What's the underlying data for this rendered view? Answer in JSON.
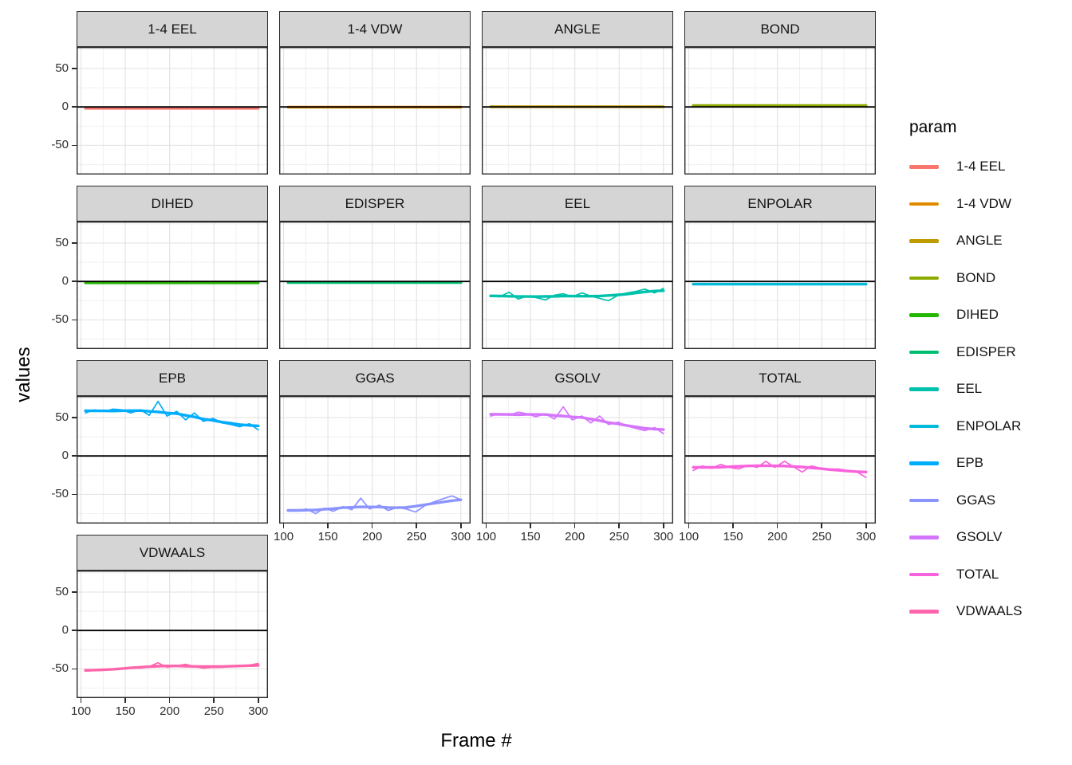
{
  "figure": {
    "y_axis_title": "values",
    "x_axis_title": "Frame #",
    "background_color": "#FFFFFF",
    "strip_fill": "#D5D5D5",
    "panel_border_color": "#2B2B2B",
    "grid_major_color": "#E2E2E2",
    "grid_minor_color": "#EFEFEF",
    "zero_line_color": "#000000"
  },
  "legend": {
    "title": "param",
    "position": "right"
  },
  "chart_data": {
    "type": "line",
    "title": "",
    "xlabel": "Frame #",
    "ylabel": "values",
    "facet_layout": "4 columns, row-major, 13 facets",
    "xlim": [
      95,
      311
    ],
    "ylim": [
      -88,
      78
    ],
    "x_ticks": [
      100,
      150,
      200,
      250,
      300
    ],
    "y_ticks": [
      50,
      0,
      -50
    ],
    "x_minor_ticks": [
      125,
      175,
      225,
      275
    ],
    "y_minor_ticks": [
      -75,
      -25,
      25,
      75
    ],
    "grid": true,
    "legend_position": "right",
    "layers": {
      "raw_line": true,
      "smooth_trend": true,
      "zero_hline": true
    },
    "x": [
      105,
      115,
      126,
      136,
      146,
      156,
      167,
      177,
      187,
      197,
      208,
      218,
      228,
      238,
      249,
      259,
      269,
      279,
      290,
      300
    ],
    "facets": [
      {
        "label": "1-4 EEL",
        "color": "#F8766D",
        "y": [
          -1.8,
          -1.8,
          -1.8,
          -1.8,
          -1.8,
          -1.8,
          -1.8,
          -1.8,
          -1.8,
          -1.8,
          -1.8,
          -1.8,
          -1.8,
          -1.8,
          -1.8,
          -1.8,
          -1.8,
          -1.8,
          -1.8,
          -1.8
        ]
      },
      {
        "label": "1-4 VDW",
        "color": "#E18A00",
        "y": [
          -0.3,
          -0.3,
          -0.3,
          -0.3,
          -0.3,
          -0.3,
          -0.3,
          -0.3,
          -0.3,
          -0.3,
          -0.3,
          -0.3,
          -0.3,
          -0.3,
          -0.3,
          -0.3,
          -0.3,
          -0.3,
          -0.3,
          -0.3
        ]
      },
      {
        "label": "ANGLE",
        "color": "#BE9C00",
        "y": [
          0.3,
          0.3,
          0.3,
          0.3,
          0.3,
          0.3,
          0.3,
          0.3,
          0.3,
          0.3,
          0.3,
          0.3,
          0.3,
          0.3,
          0.3,
          0.3,
          0.3,
          0.3,
          0.3,
          0.3
        ]
      },
      {
        "label": "BOND",
        "color": "#8CAB00",
        "y": [
          1.8,
          1.8,
          1.8,
          1.8,
          1.8,
          1.8,
          1.8,
          1.8,
          1.8,
          1.8,
          1.8,
          1.8,
          1.8,
          1.8,
          1.8,
          1.8,
          1.8,
          1.8,
          1.8,
          1.8
        ]
      },
      {
        "label": "DIHED",
        "color": "#24B700",
        "y": [
          -1.8,
          -1.8,
          -1.8,
          -1.8,
          -1.8,
          -1.8,
          -1.8,
          -1.8,
          -1.8,
          -1.8,
          -1.8,
          -1.8,
          -1.8,
          -1.8,
          -1.8,
          -1.8,
          -1.8,
          -1.8,
          -1.8,
          -1.8
        ]
      },
      {
        "label": "EDISPER",
        "color": "#00BE70",
        "y": [
          -1.5,
          -1.5,
          -1.5,
          -1.5,
          -1.5,
          -1.5,
          -1.5,
          -1.5,
          -1.5,
          -1.5,
          -1.5,
          -1.5,
          -1.5,
          -1.5,
          -1.5,
          -1.5,
          -1.5,
          -1.5,
          -1.5,
          -1.5
        ]
      },
      {
        "label": "EEL",
        "color": "#00C1AB",
        "y": [
          -18,
          -20,
          -14,
          -23,
          -19,
          -21,
          -24,
          -18,
          -16,
          -20,
          -15,
          -19,
          -22,
          -25,
          -18,
          -15,
          -13,
          -10,
          -15,
          -9
        ]
      },
      {
        "label": "ENPOLAR",
        "color": "#00BBDA",
        "y": [
          -3.5,
          -3.5,
          -3.5,
          -3.5,
          -3.5,
          -3.5,
          -3.5,
          -3.5,
          -3.5,
          -3.5,
          -3.5,
          -3.5,
          -3.5,
          -3.5,
          -3.5,
          -3.5,
          -3.5,
          -3.5,
          -3.5,
          -3.5
        ]
      },
      {
        "label": "EPB",
        "color": "#00ACFC",
        "y": [
          56,
          60,
          58,
          61,
          60,
          56,
          60,
          53,
          71,
          52,
          58,
          47,
          56,
          45,
          49,
          43,
          41,
          38,
          42,
          34
        ]
      },
      {
        "label": "GGAS",
        "color": "#8B93FF",
        "y": [
          -70,
          -71,
          -69,
          -75,
          -68,
          -72,
          -66,
          -70,
          -55,
          -69,
          -64,
          -71,
          -67,
          -69,
          -73,
          -65,
          -60,
          -56,
          -52,
          -57
        ]
      },
      {
        "label": "GSOLV",
        "color": "#D575FE",
        "y": [
          52,
          55,
          53,
          57,
          55,
          51,
          55,
          48,
          64,
          47,
          52,
          43,
          52,
          41,
          44,
          39,
          36,
          33,
          37,
          29
        ]
      },
      {
        "label": "TOTAL",
        "color": "#F962DD",
        "y": [
          -19,
          -13,
          -16,
          -11,
          -15,
          -17,
          -12,
          -15,
          -7,
          -15,
          -7,
          -14,
          -21,
          -13,
          -16,
          -17,
          -17,
          -19,
          -21,
          -28
        ]
      },
      {
        "label": "VDWAALS",
        "color": "#FF65AC",
        "y": [
          -53,
          -52,
          -52,
          -51,
          -50,
          -48,
          -49,
          -47,
          -42,
          -48,
          -46,
          -44,
          -47,
          -49,
          -48,
          -48,
          -47,
          -46,
          -45,
          -43
        ]
      }
    ]
  }
}
